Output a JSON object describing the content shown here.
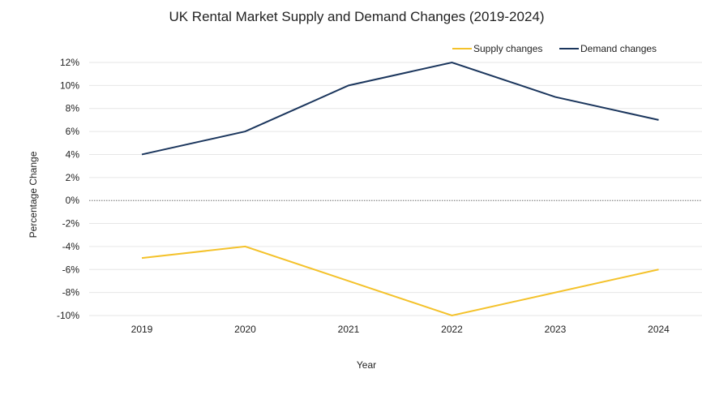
{
  "chart_data": {
    "type": "line",
    "title": "UK Rental Market Supply and Demand Changes (2019-2024)",
    "xlabel": "Year",
    "ylabel": "Percentage Change",
    "x": [
      "2019",
      "2020",
      "2021",
      "2022",
      "2023",
      "2024"
    ],
    "ylim": [
      -10,
      12
    ],
    "yticks": [
      -10,
      -8,
      -6,
      -4,
      -2,
      0,
      2,
      4,
      6,
      8,
      10,
      12
    ],
    "ytick_suffix": "%",
    "grid": true,
    "zero_line": true,
    "legend_position": "top-right",
    "series": [
      {
        "name": "Supply changes",
        "color": "#F4C22B",
        "values": [
          -5,
          -4,
          -7,
          -10,
          -8,
          -6
        ]
      },
      {
        "name": "Demand changes",
        "color": "#1B365D",
        "values": [
          4,
          6,
          10,
          12,
          9,
          7
        ]
      }
    ]
  }
}
